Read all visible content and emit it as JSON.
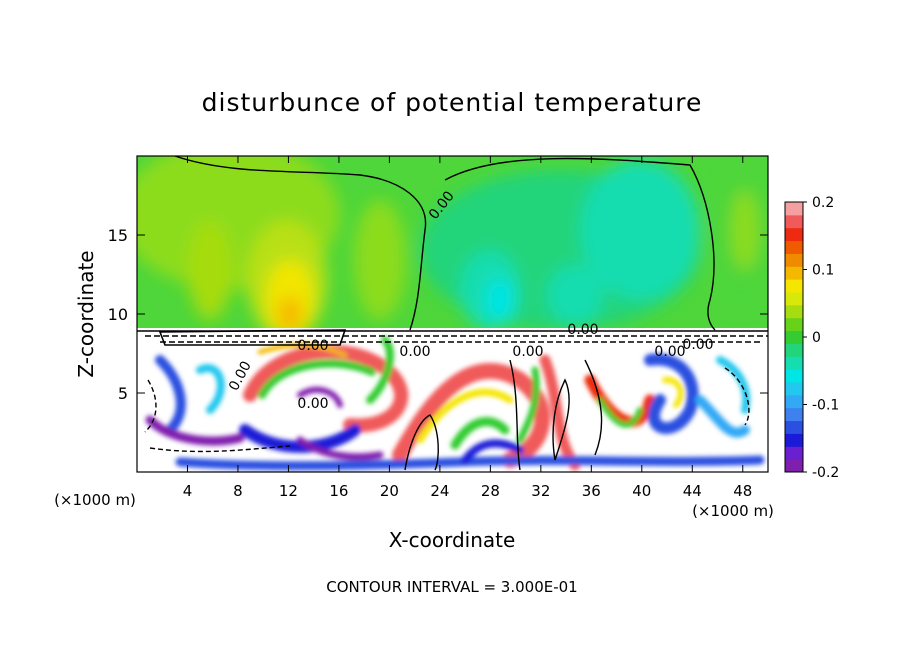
{
  "chart_data": {
    "type": "heatmap",
    "title": "disturbunce of potential temperature",
    "xlabel": "X-coordinate",
    "ylabel": "Z-coordinate",
    "x_unit_left": "(×1000 m)",
    "x_unit_right": "(×1000 m)",
    "xlim": [
      0,
      50
    ],
    "ylim": [
      0,
      20
    ],
    "x_ticks": [
      "4",
      "8",
      "12",
      "16",
      "20",
      "24",
      "28",
      "32",
      "36",
      "40",
      "44",
      "48"
    ],
    "y_ticks": [
      "5",
      "10",
      "15"
    ],
    "colorbar": {
      "range": [
        -0.2,
        0.2
      ],
      "tick_labels": [
        "0.2",
        "0.1",
        "0",
        "-0.1",
        "-0.2"
      ],
      "tick_values": [
        0.2,
        0.1,
        0,
        -0.1,
        -0.2
      ],
      "colors": [
        "#7f1fae",
        "#6a1fd0",
        "#1a1ad8",
        "#2b4fe0",
        "#3d80ee",
        "#33a9f5",
        "#22c8ee",
        "#00e5e5",
        "#14ddb0",
        "#22d47a",
        "#33cc33",
        "#66d21a",
        "#a6dc10",
        "#d8e80a",
        "#f5e600",
        "#f5b800",
        "#f08a00",
        "#f05a00",
        "#ee2a10",
        "#f05a5a",
        "#f4a0a0"
      ]
    },
    "contour_labels": [
      "0.00",
      "0.00",
      "0.00",
      "0.00",
      "0.00",
      "0.00",
      "0.00",
      "0.00",
      "0.00"
    ],
    "footer": "CONTOUR INTERVAL = 3.000E-01"
  }
}
